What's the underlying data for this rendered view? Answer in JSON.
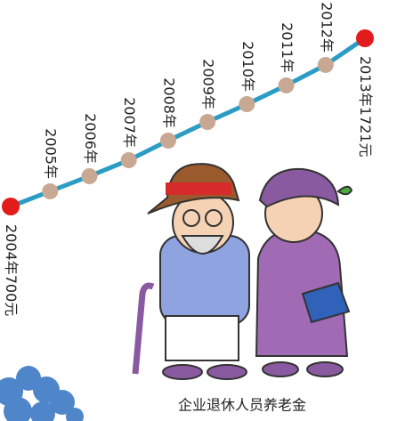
{
  "chart_data": {
    "type": "line",
    "caption": "企业退休人员养老金",
    "categories": [
      "2004年",
      "2005年",
      "2006年",
      "2007年",
      "2008年",
      "2009年",
      "2010年",
      "2011年",
      "2012年",
      "2013年"
    ],
    "values": [
      700,
      792,
      884,
      981,
      1100,
      1213,
      1321,
      1435,
      1559,
      1721
    ],
    "value_labels": [
      "700元",
      null,
      null,
      null,
      null,
      null,
      null,
      null,
      null,
      "1721元"
    ],
    "color": "#2b9cc4",
    "marker_color": "#c8a892",
    "end_marker_color": "#e21b1b"
  }
}
